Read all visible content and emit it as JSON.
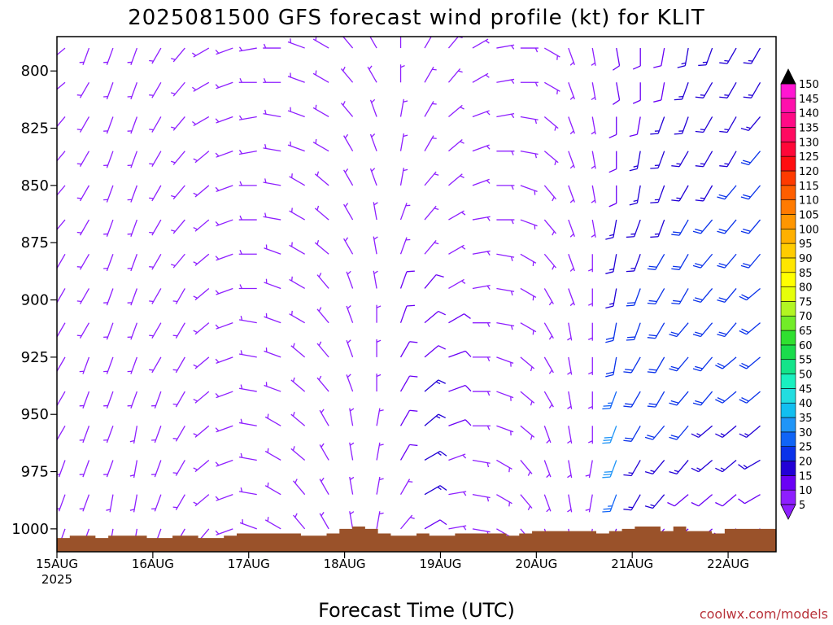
{
  "chart_data": {
    "type": "wind_barbs",
    "title": "2025081500 GFS forecast wind profile (kt) for KLIT",
    "xlabel": "Forecast Time (UTC)",
    "ylabel": "",
    "credit": "coolwx.com/models",
    "y_axis": {
      "scale": "pressure_linear_inverted",
      "ylim": [
        1010,
        785
      ],
      "ticks": [
        800,
        825,
        850,
        875,
        900,
        925,
        950,
        975,
        1000
      ]
    },
    "x_axis": {
      "xlim": [
        "2025-08-15T00Z",
        "2025-08-22T12Z"
      ],
      "ticks": [
        {
          "label": "15AUG",
          "sublabel": "2025",
          "day": 0
        },
        {
          "label": "16AUG",
          "day": 1
        },
        {
          "label": "17AUG",
          "day": 2
        },
        {
          "label": "18AUG",
          "day": 3
        },
        {
          "label": "19AUG",
          "day": 4
        },
        {
          "label": "20AUG",
          "day": 5
        },
        {
          "label": "21AUG",
          "day": 6
        },
        {
          "label": "22AUG",
          "day": 7
        }
      ]
    },
    "colorbar": {
      "levels": [
        5,
        10,
        15,
        20,
        25,
        30,
        35,
        40,
        45,
        50,
        55,
        60,
        65,
        70,
        75,
        80,
        85,
        90,
        95,
        100,
        105,
        110,
        115,
        120,
        125,
        130,
        135,
        140,
        145,
        150
      ],
      "colors": [
        "#8e1fff",
        "#6a00f5",
        "#2200d6",
        "#0a32ea",
        "#1064f6",
        "#2095f7",
        "#12bff0",
        "#22dde0",
        "#1af0c0",
        "#14e48a",
        "#1adc4c",
        "#30e030",
        "#72ec28",
        "#b2f522",
        "#e6ff0a",
        "#ffff00",
        "#ffe600",
        "#ffcc00",
        "#ffb000",
        "#ff9600",
        "#ff7a00",
        "#ff5e00",
        "#ff3a00",
        "#ff0e10",
        "#ff0838",
        "#ff0a60",
        "#ff0a86",
        "#ff10ac",
        "#ff16d2",
        "#ff22f0"
      ],
      "extend_min_color": "#8e1fff",
      "extend_max_color": "#000000"
    },
    "terrain_color": "#9a522a",
    "terrain_pressure": [
      1004,
      1003,
      1003,
      1004,
      1003,
      1003,
      1003,
      1004,
      1004,
      1003,
      1003,
      1004,
      1004,
      1003,
      1002,
      1002,
      1002,
      1002,
      1002,
      1003,
      1003,
      1002,
      1000,
      999,
      1000,
      1002,
      1003,
      1003,
      1002,
      1003,
      1003,
      1002,
      1002,
      1002,
      1002,
      1003,
      1002,
      1001,
      1001,
      1001,
      1001,
      1001,
      1002,
      1001,
      1000,
      999,
      999,
      1001,
      999,
      1001,
      1001,
      1002,
      1000,
      1000,
      1000,
      1000
    ],
    "wind_levels": [
      790,
      805,
      820,
      835,
      850,
      865,
      880,
      895,
      910,
      925,
      940,
      955,
      970,
      985,
      1000
    ],
    "wind_times_hours": [
      0,
      6,
      12,
      18,
      24,
      30,
      36,
      42,
      48,
      54,
      60,
      66,
      72,
      78,
      84,
      90,
      96,
      102,
      108,
      114,
      120,
      126,
      132,
      138,
      144,
      150,
      156,
      162,
      168,
      174
    ],
    "wind_direction_deg": [
      [
        230,
        200,
        200,
        200,
        210,
        220,
        240,
        250,
        260,
        270,
        290,
        300,
        320,
        330,
        0,
        30,
        40,
        60,
        80,
        90,
        120,
        160,
        170,
        170,
        180,
        190,
        190,
        200,
        210,
        210
      ],
      [
        230,
        210,
        200,
        200,
        210,
        220,
        240,
        250,
        270,
        270,
        290,
        300,
        320,
        330,
        0,
        30,
        40,
        60,
        80,
        90,
        120,
        160,
        170,
        170,
        180,
        190,
        200,
        210,
        210,
        210
      ],
      [
        220,
        210,
        200,
        200,
        210,
        220,
        240,
        250,
        260,
        280,
        290,
        300,
        320,
        340,
        10,
        30,
        50,
        70,
        80,
        100,
        130,
        160,
        170,
        180,
        190,
        200,
        200,
        210,
        210,
        220
      ],
      [
        220,
        210,
        200,
        200,
        210,
        220,
        230,
        250,
        260,
        280,
        290,
        300,
        330,
        340,
        10,
        30,
        50,
        70,
        90,
        100,
        130,
        160,
        170,
        180,
        190,
        200,
        210,
        210,
        210,
        220
      ],
      [
        220,
        210,
        200,
        200,
        210,
        220,
        230,
        250,
        270,
        280,
        300,
        310,
        330,
        340,
        10,
        40,
        50,
        70,
        90,
        110,
        140,
        160,
        170,
        180,
        190,
        200,
        210,
        210,
        220,
        220
      ],
      [
        220,
        210,
        200,
        200,
        210,
        220,
        230,
        250,
        270,
        280,
        300,
        310,
        330,
        350,
        20,
        40,
        60,
        80,
        90,
        110,
        140,
        160,
        170,
        190,
        200,
        200,
        210,
        220,
        220,
        220
      ],
      [
        210,
        210,
        200,
        200,
        210,
        220,
        230,
        250,
        270,
        290,
        300,
        310,
        330,
        350,
        20,
        40,
        60,
        80,
        100,
        120,
        140,
        160,
        180,
        190,
        200,
        210,
        210,
        220,
        220,
        220
      ],
      [
        210,
        210,
        200,
        200,
        210,
        210,
        230,
        250,
        270,
        290,
        300,
        320,
        340,
        350,
        20,
        40,
        60,
        80,
        100,
        120,
        150,
        160,
        180,
        190,
        200,
        210,
        210,
        220,
        220,
        230
      ],
      [
        210,
        210,
        200,
        200,
        210,
        210,
        230,
        250,
        280,
        290,
        300,
        320,
        340,
        0,
        20,
        50,
        60,
        90,
        100,
        120,
        150,
        170,
        180,
        190,
        200,
        210,
        220,
        220,
        220,
        230
      ],
      [
        210,
        200,
        200,
        200,
        210,
        210,
        230,
        250,
        280,
        290,
        310,
        320,
        340,
        0,
        30,
        50,
        70,
        90,
        110,
        130,
        150,
        170,
        180,
        190,
        210,
        210,
        220,
        220,
        230,
        230
      ],
      [
        210,
        200,
        200,
        200,
        200,
        210,
        230,
        250,
        280,
        290,
        310,
        320,
        340,
        0,
        30,
        50,
        70,
        90,
        110,
        130,
        150,
        170,
        180,
        200,
        210,
        210,
        220,
        220,
        230,
        230
      ],
      [
        210,
        200,
        200,
        190,
        200,
        210,
        230,
        250,
        280,
        300,
        310,
        330,
        350,
        10,
        30,
        50,
        70,
        90,
        110,
        130,
        160,
        170,
        180,
        200,
        210,
        220,
        220,
        230,
        230,
        230
      ],
      [
        200,
        200,
        200,
        190,
        200,
        210,
        230,
        250,
        280,
        300,
        310,
        330,
        350,
        10,
        30,
        60,
        70,
        100,
        120,
        140,
        160,
        170,
        190,
        200,
        210,
        220,
        220,
        230,
        230,
        240
      ],
      [
        200,
        200,
        190,
        190,
        200,
        210,
        230,
        250,
        280,
        300,
        320,
        330,
        350,
        10,
        30,
        60,
        80,
        100,
        120,
        140,
        160,
        170,
        190,
        200,
        210,
        220,
        230,
        230,
        230,
        240
      ],
      [
        200,
        200,
        190,
        190,
        200,
        210,
        220,
        250,
        290,
        300,
        320,
        330,
        350,
        10,
        40,
        60,
        80,
        100,
        120,
        140,
        160,
        170,
        190,
        200,
        210,
        220,
        230,
        230,
        240,
        240
      ]
    ],
    "wind_speed_kt": [
      [
        5,
        5,
        5,
        5,
        5,
        5,
        5,
        5,
        5,
        5,
        5,
        5,
        5,
        5,
        5,
        5,
        5,
        5,
        5,
        5,
        5,
        5,
        5,
        10,
        10,
        10,
        15,
        15,
        15,
        15
      ],
      [
        5,
        5,
        5,
        5,
        5,
        5,
        5,
        5,
        5,
        5,
        5,
        5,
        5,
        5,
        5,
        5,
        5,
        5,
        5,
        5,
        5,
        5,
        5,
        10,
        10,
        10,
        15,
        15,
        15,
        15
      ],
      [
        5,
        5,
        5,
        5,
        5,
        5,
        5,
        5,
        5,
        5,
        5,
        5,
        5,
        5,
        5,
        5,
        5,
        5,
        5,
        5,
        5,
        5,
        5,
        10,
        10,
        15,
        15,
        15,
        15,
        15
      ],
      [
        5,
        5,
        5,
        5,
        5,
        5,
        5,
        5,
        5,
        5,
        5,
        5,
        5,
        5,
        5,
        5,
        5,
        5,
        5,
        5,
        5,
        5,
        5,
        10,
        15,
        15,
        15,
        15,
        15,
        20
      ],
      [
        5,
        5,
        5,
        5,
        5,
        5,
        5,
        5,
        5,
        5,
        5,
        5,
        5,
        5,
        5,
        5,
        5,
        5,
        5,
        5,
        5,
        5,
        5,
        10,
        15,
        15,
        15,
        15,
        20,
        20
      ],
      [
        5,
        5,
        5,
        5,
        5,
        5,
        5,
        5,
        5,
        5,
        5,
        5,
        5,
        5,
        5,
        5,
        5,
        5,
        5,
        5,
        5,
        5,
        5,
        15,
        15,
        15,
        20,
        20,
        20,
        20
      ],
      [
        5,
        5,
        5,
        5,
        5,
        5,
        5,
        5,
        5,
        5,
        5,
        5,
        5,
        5,
        5,
        5,
        5,
        5,
        5,
        5,
        5,
        5,
        5,
        15,
        15,
        20,
        20,
        20,
        20,
        20
      ],
      [
        5,
        5,
        5,
        5,
        5,
        5,
        5,
        5,
        5,
        5,
        5,
        5,
        5,
        5,
        10,
        10,
        5,
        5,
        5,
        5,
        5,
        5,
        5,
        15,
        20,
        20,
        20,
        20,
        20,
        20
      ],
      [
        5,
        5,
        5,
        5,
        5,
        5,
        5,
        5,
        5,
        5,
        5,
        5,
        5,
        5,
        10,
        10,
        10,
        5,
        5,
        5,
        5,
        5,
        5,
        20,
        20,
        20,
        20,
        20,
        20,
        20
      ],
      [
        5,
        5,
        5,
        5,
        5,
        5,
        5,
        5,
        5,
        5,
        5,
        5,
        5,
        5,
        10,
        10,
        10,
        5,
        5,
        5,
        5,
        5,
        5,
        20,
        20,
        20,
        20,
        20,
        20,
        20
      ],
      [
        5,
        5,
        5,
        5,
        5,
        5,
        5,
        5,
        5,
        5,
        5,
        5,
        5,
        5,
        10,
        15,
        10,
        5,
        5,
        5,
        5,
        5,
        5,
        25,
        20,
        20,
        20,
        20,
        20,
        20
      ],
      [
        5,
        5,
        5,
        5,
        5,
        5,
        5,
        5,
        5,
        5,
        5,
        5,
        5,
        5,
        10,
        15,
        10,
        5,
        5,
        5,
        5,
        5,
        5,
        30,
        20,
        20,
        20,
        15,
        15,
        15
      ],
      [
        5,
        5,
        5,
        5,
        5,
        5,
        5,
        5,
        5,
        5,
        5,
        5,
        5,
        5,
        10,
        15,
        5,
        5,
        5,
        5,
        5,
        5,
        5,
        30,
        15,
        15,
        15,
        15,
        15,
        15
      ],
      [
        5,
        5,
        5,
        5,
        5,
        5,
        5,
        5,
        5,
        5,
        5,
        5,
        5,
        5,
        5,
        15,
        5,
        5,
        5,
        5,
        5,
        5,
        5,
        25,
        15,
        15,
        10,
        10,
        10,
        10
      ],
      [
        5,
        5,
        5,
        5,
        5,
        5,
        5,
        5,
        5,
        5,
        5,
        5,
        5,
        5,
        5,
        10,
        5,
        5,
        5,
        5,
        5,
        5,
        5,
        10,
        10,
        10,
        10,
        10,
        10,
        10
      ]
    ]
  }
}
